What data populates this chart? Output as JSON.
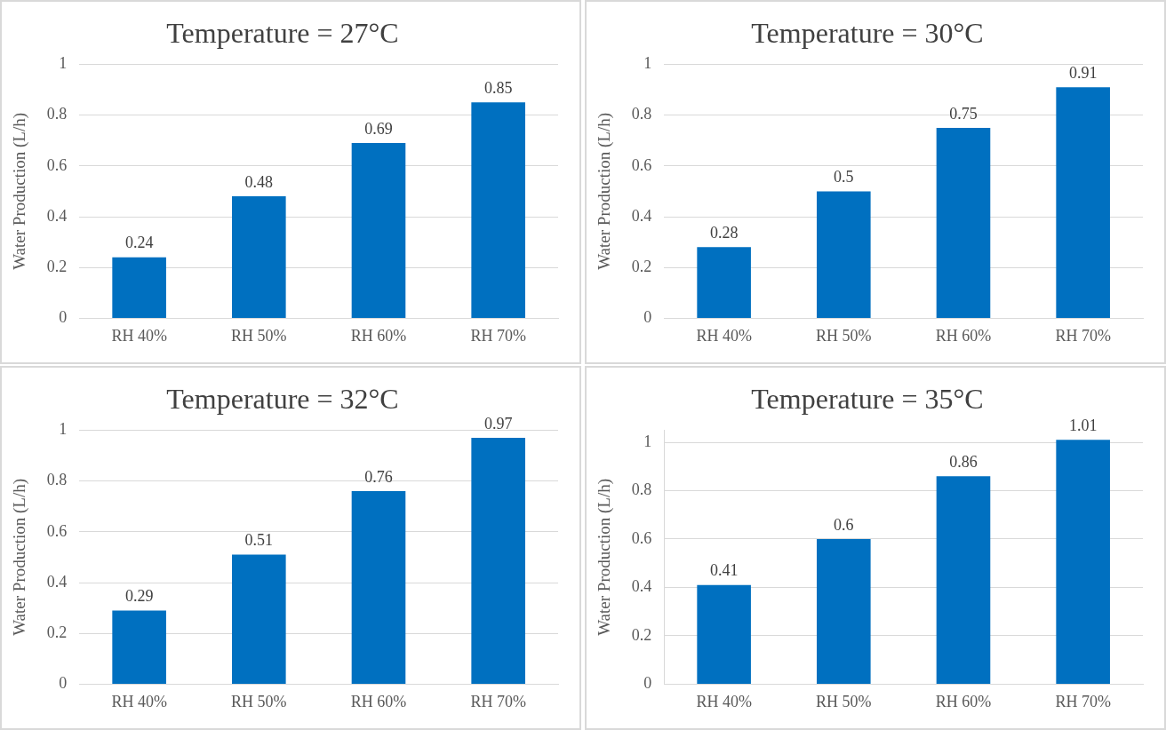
{
  "chart_data": [
    {
      "type": "bar",
      "title": "Temperature = 27°C",
      "ylabel": "Water Production (L/h)",
      "categories": [
        "RH 40%",
        "RH 50%",
        "RH 60%",
        "RH 70%"
      ],
      "values": [
        0.24,
        0.48,
        0.69,
        0.85
      ],
      "color": "#0070c0",
      "ylim": [
        0,
        1
      ],
      "yticks": [
        0,
        0.2,
        0.4,
        0.6,
        0.8,
        1
      ],
      "grid": "y",
      "legend": false,
      "data_labels": true
    },
    {
      "type": "bar",
      "title": "Temperature = 30°C",
      "ylabel": "Water Production (L/h)",
      "categories": [
        "RH 40%",
        "RH 50%",
        "RH 60%",
        "RH 70%"
      ],
      "values": [
        0.28,
        0.5,
        0.75,
        0.91
      ],
      "color": "#0070c0",
      "ylim": [
        0,
        1
      ],
      "yticks": [
        0,
        0.2,
        0.4,
        0.6,
        0.8,
        1
      ],
      "grid": "y",
      "legend": false,
      "data_labels": true
    },
    {
      "type": "bar",
      "title": "Temperature = 32°C",
      "ylabel": "Water Production (L/h)",
      "categories": [
        "RH 40%",
        "RH 50%",
        "RH 60%",
        "RH 70%"
      ],
      "values": [
        0.29,
        0.51,
        0.76,
        0.97
      ],
      "color": "#0070c0",
      "ylim": [
        0,
        1
      ],
      "yticks": [
        0,
        0.2,
        0.4,
        0.6,
        0.8,
        1
      ],
      "grid": "y",
      "legend": false,
      "data_labels": true
    },
    {
      "type": "bar",
      "title": "Temperature = 35°C",
      "ylabel": "Water Production (L/h)",
      "categories": [
        "RH 40%",
        "RH 50%",
        "RH 60%",
        "RH 70%"
      ],
      "values": [
        0.41,
        0.6,
        0.86,
        1.01
      ],
      "color": "#0070c0",
      "ylim": [
        0,
        1.05
      ],
      "yticks": [
        0,
        0.2,
        0.4,
        0.6,
        0.8,
        1
      ],
      "grid": "y",
      "legend": false,
      "data_labels": true
    }
  ]
}
